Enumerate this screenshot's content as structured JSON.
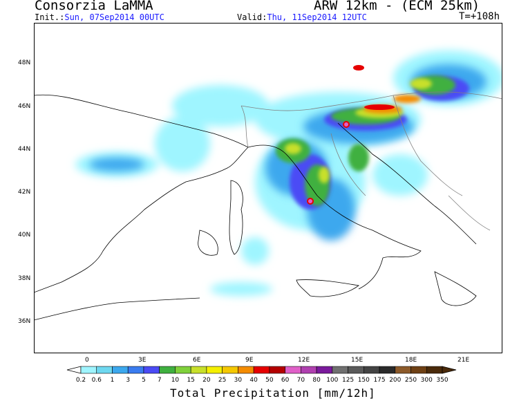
{
  "header": {
    "source": "Consorzia LaMMA",
    "model": "ARW 12km - (ECM 25km)",
    "init_label": "Init.:",
    "init_value": "Sun, 07Sep2014 00UTC",
    "valid_label": "Valid:",
    "valid_value": "Thu, 11Sep2014 12UTC",
    "forecast_step": "T=+108h"
  },
  "map": {
    "lon_labels": [
      "0",
      "3E",
      "6E",
      "9E",
      "12E",
      "15E",
      "18E",
      "21E"
    ],
    "lat_labels": [
      "48N",
      "46N",
      "44N",
      "42N",
      "40N",
      "38N",
      "36N"
    ],
    "land_color": "#ffffff",
    "coast_color": "#000000",
    "border_color": "#808080"
  },
  "colorbar": {
    "title": "Total Precipitation [mm/12h]",
    "levels": [
      "0.2",
      "0.6",
      "1",
      "3",
      "5",
      "7",
      "10",
      "15",
      "20",
      "25",
      "30",
      "40",
      "50",
      "60",
      "70",
      "80",
      "100",
      "125",
      "150",
      "175",
      "200",
      "250",
      "300",
      "350"
    ],
    "colors": [
      "#9ff5ff",
      "#6ed8f0",
      "#3ca8ee",
      "#3a7cf0",
      "#4b4bf5",
      "#3fb03f",
      "#7fd13b",
      "#c8e02a",
      "#f5f000",
      "#f5c800",
      "#f58c00",
      "#e60000",
      "#b40000",
      "#e060c8",
      "#b040b0",
      "#7a1a9c",
      "#707070",
      "#5a5a5a",
      "#444444",
      "#2a2a2a",
      "#8c5a2a",
      "#6e4014",
      "#4a2a0a"
    ]
  }
}
